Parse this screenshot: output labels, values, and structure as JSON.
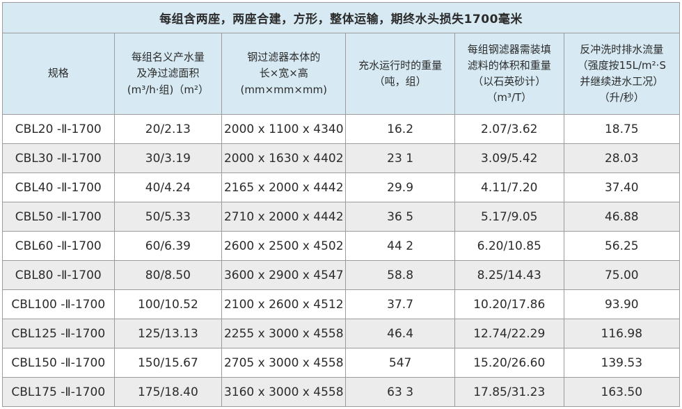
{
  "title": "每组含两座，两座合建，方形，整体运输，期终水头损失1700毫米",
  "columns": [
    {
      "id": "spec",
      "lines": [
        "规格"
      ]
    },
    {
      "id": "output-filter-area",
      "lines": [
        "每组名义产水量",
        "及净过滤面积",
        "(m³/h·组)（m²）"
      ]
    },
    {
      "id": "body-dimensions",
      "lines": [
        "钢过滤器本体的",
        "长×宽×高",
        "(mm×mm×mm)"
      ]
    },
    {
      "id": "filled-weight",
      "lines": [
        "充水运行时的重量",
        "（吨，组）"
      ]
    },
    {
      "id": "media-volume-weight",
      "lines": [
        "每组钢滤器需装填",
        "滤料的体积和重量",
        "（以石英砂计）",
        "（m³/T）"
      ]
    },
    {
      "id": "backwash-flow",
      "lines": [
        "反冲洗时排水流量",
        "（强度按15L/m²·S",
        "并继续进水工况）",
        "（升/秒）"
      ]
    }
  ],
  "column_widths_pct": [
    16.5,
    15.9,
    18.3,
    16.1,
    16.1,
    17.1
  ],
  "rows": [
    [
      "CBL20 -Ⅱ-1700",
      "20/2.13",
      "2000 x 1100 x 4340",
      "16.2",
      "2.07/3.62",
      "18.75"
    ],
    [
      "CBL30 -Ⅱ-1700",
      "30/3.19",
      "2000 x 1630 x 4402",
      "23 1",
      "3.09/5.42",
      "28.03"
    ],
    [
      "CBL40 -Ⅱ-1700",
      "40/4.24",
      "2165 x 2000 x 4442",
      "29.9",
      "4.11/7.20",
      "37.40"
    ],
    [
      "CBL50 -Ⅱ-1700",
      "50/5.33",
      "2710 x 2000 x 4442",
      "36 5",
      "5.17/9.05",
      "46.88"
    ],
    [
      "CBL60 -Ⅱ-1700",
      "60/6.39",
      "2600 x 2500 x 4502",
      "44 2",
      "6.20/10.85",
      "56.25"
    ],
    [
      "CBL80 -Ⅱ-1700",
      "80/8.50",
      "3600 x 2900 x 4547",
      "58.8",
      "8.25/14.43",
      "75.00"
    ],
    [
      "CBL100 -Ⅱ-1700",
      "100/10.52",
      "2100 x 2600 x 4512",
      "37.7",
      "10.20/17.86",
      "93.90"
    ],
    [
      "CBL125 -Ⅱ-1700",
      "125/13.13",
      "2255 x 3000 x 4558",
      "46.4",
      "12.74/22.29",
      "116.98"
    ],
    [
      "CBL150 -Ⅱ-1700",
      "150/15.67",
      "2705 x 3000 x 4558",
      "547",
      "15.20/26.60",
      "139.53"
    ],
    [
      "CBL175 -Ⅱ-1700",
      "175/18.40",
      "3160 x 3000 x 4558",
      "63 3",
      "17.85/31.23",
      "163.50"
    ]
  ],
  "colors": {
    "header_bg": "#d7eaf3",
    "row_alt_bg": "#ececec",
    "border": "#9b9b9b",
    "text": "#2b2b2b"
  }
}
